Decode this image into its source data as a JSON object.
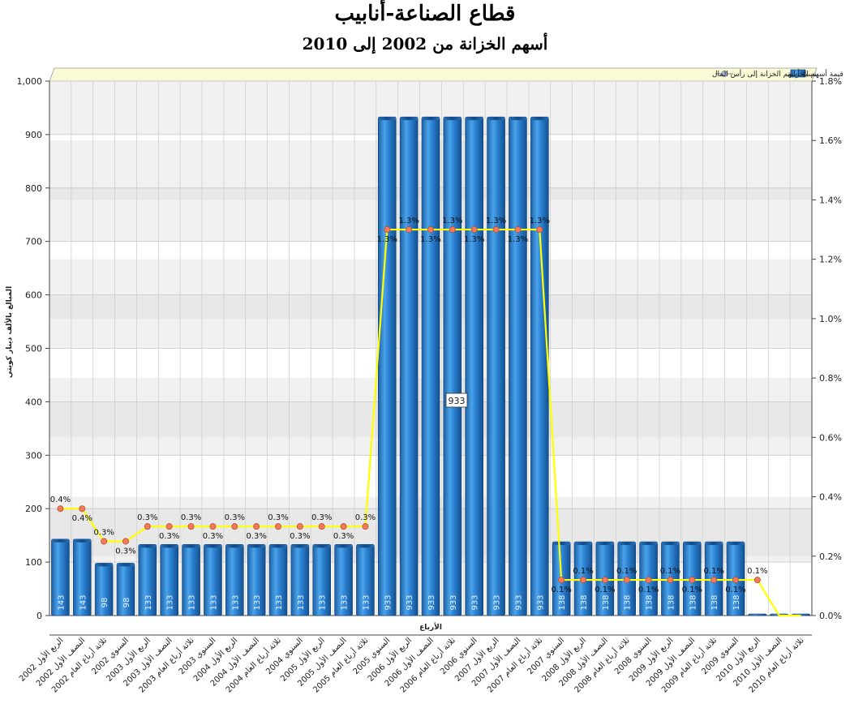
{
  "title": "قطاع الصناعة-أنابيب",
  "subtitle": "أسهم الخزانة من 2002 إلى 2010",
  "chart_data": {
    "type": "bar",
    "title": "قطاع الصناعة-أنابيب",
    "subtitle": "أسهم الخزانة من 2002 إلى 2010",
    "xlabel": "الأرباع",
    "ylabel": "المبالغ بالألف دينار كويتي",
    "ylim": [
      0,
      1000
    ],
    "y_ticks": [
      "0",
      "100",
      "200",
      "300",
      "400",
      "500",
      "600",
      "700",
      "800",
      "900",
      "1,000"
    ],
    "y2lim": [
      0,
      1.8
    ],
    "y2_ticks": [
      "0.0%",
      "0.2%",
      "0.4%",
      "0.6%",
      "0.8%",
      "1.0%",
      "1.2%",
      "1.4%",
      "1.6%",
      "1.8%"
    ],
    "grid": true,
    "legend_position": "top-right",
    "categories": [
      "الربع الأول 2002",
      "النصف الأول 2002",
      "ثلاثة أرباع العام 2002",
      "السنوي 2002",
      "الربع الأول 2003",
      "النصف الأول 2003",
      "ثلاثة أرباع العام 2003",
      "السنوي 2003",
      "الربع الأول 2004",
      "النصف الأول 2004",
      "ثلاثة أرباع العام 2004",
      "السنوي 2004",
      "الربع الأول 2005",
      "النصف الأول 2005",
      "ثلاثة أرباع العام 2005",
      "السنوي 2005",
      "الربع الأول 2006",
      "النصف الأول 2006",
      "ثلاثة أرباع العام 2006",
      "السنوي 2006",
      "الربع الأول 2007",
      "النصف الأول 2007",
      "ثلاثة أرباع العام 2007",
      "السنوي 2007",
      "الربع الأول 2008",
      "النصف الأول 2008",
      "ثلاثة أرباع العام 2008",
      "السنوي 2008",
      "الربع الأول 2009",
      "النصف الأول 2009",
      "ثلاثة أرباع العام 2009",
      "السنوي 2009",
      "الربع الأول 2010",
      "النصف الأول 2010",
      "ثلاثة أرباع العام 2010"
    ],
    "series": [
      {
        "name": "قيمة أسهم الخزانة",
        "type": "bar",
        "color": "#2a7fd0",
        "values": [
          143,
          143,
          98,
          98,
          133,
          133,
          133,
          133,
          133,
          133,
          133,
          133,
          133,
          133,
          133,
          933,
          933,
          933,
          933,
          933,
          933,
          933,
          933,
          138,
          138,
          138,
          138,
          138,
          138,
          138,
          138,
          138,
          3,
          3,
          3
        ],
        "labels": [
          "143",
          "143",
          "98",
          "98",
          "133",
          "133",
          "133",
          "133",
          "133",
          "133",
          "133",
          "133",
          "133",
          "133",
          "133",
          "933",
          "933",
          "933",
          "933",
          "933",
          "933",
          "933",
          "933",
          "138",
          "138",
          "138",
          "138",
          "138",
          "138",
          "138",
          "138",
          "138",
          "",
          "",
          ""
        ]
      },
      {
        "name": "نسبة أسهم الخزانة إلى رأس المال",
        "type": "line",
        "axis": "right",
        "color": "#ffff00",
        "marker_color": "#f47a5a",
        "values": [
          0.36,
          0.36,
          0.25,
          0.25,
          0.3,
          0.3,
          0.3,
          0.3,
          0.3,
          0.3,
          0.3,
          0.3,
          0.3,
          0.3,
          0.3,
          1.3,
          1.3,
          1.3,
          1.3,
          1.3,
          1.3,
          1.3,
          1.3,
          0.12,
          0.12,
          0.12,
          0.12,
          0.12,
          0.12,
          0.12,
          0.12,
          0.12,
          0.12,
          0,
          0
        ],
        "labels": [
          "0.4%",
          "0.4%",
          "0.3%",
          "0.3%",
          "0.3%",
          "0.3%",
          "0.3%",
          "0.3%",
          "0.3%",
          "0.3%",
          "0.3%",
          "0.3%",
          "0.3%",
          "0.3%",
          "0.3%",
          "1.3%",
          "1.3%",
          "1.3%",
          "1.3%",
          "1.3%",
          "1.3%",
          "1.3%",
          "1.3%",
          "0.1%",
          "0.1%",
          "0.1%",
          "0.1%",
          "0.1%",
          "0.1%",
          "0.1%",
          "0.1%",
          "0.1%",
          "0.1%",
          "",
          ""
        ]
      }
    ],
    "annotation": "933"
  }
}
